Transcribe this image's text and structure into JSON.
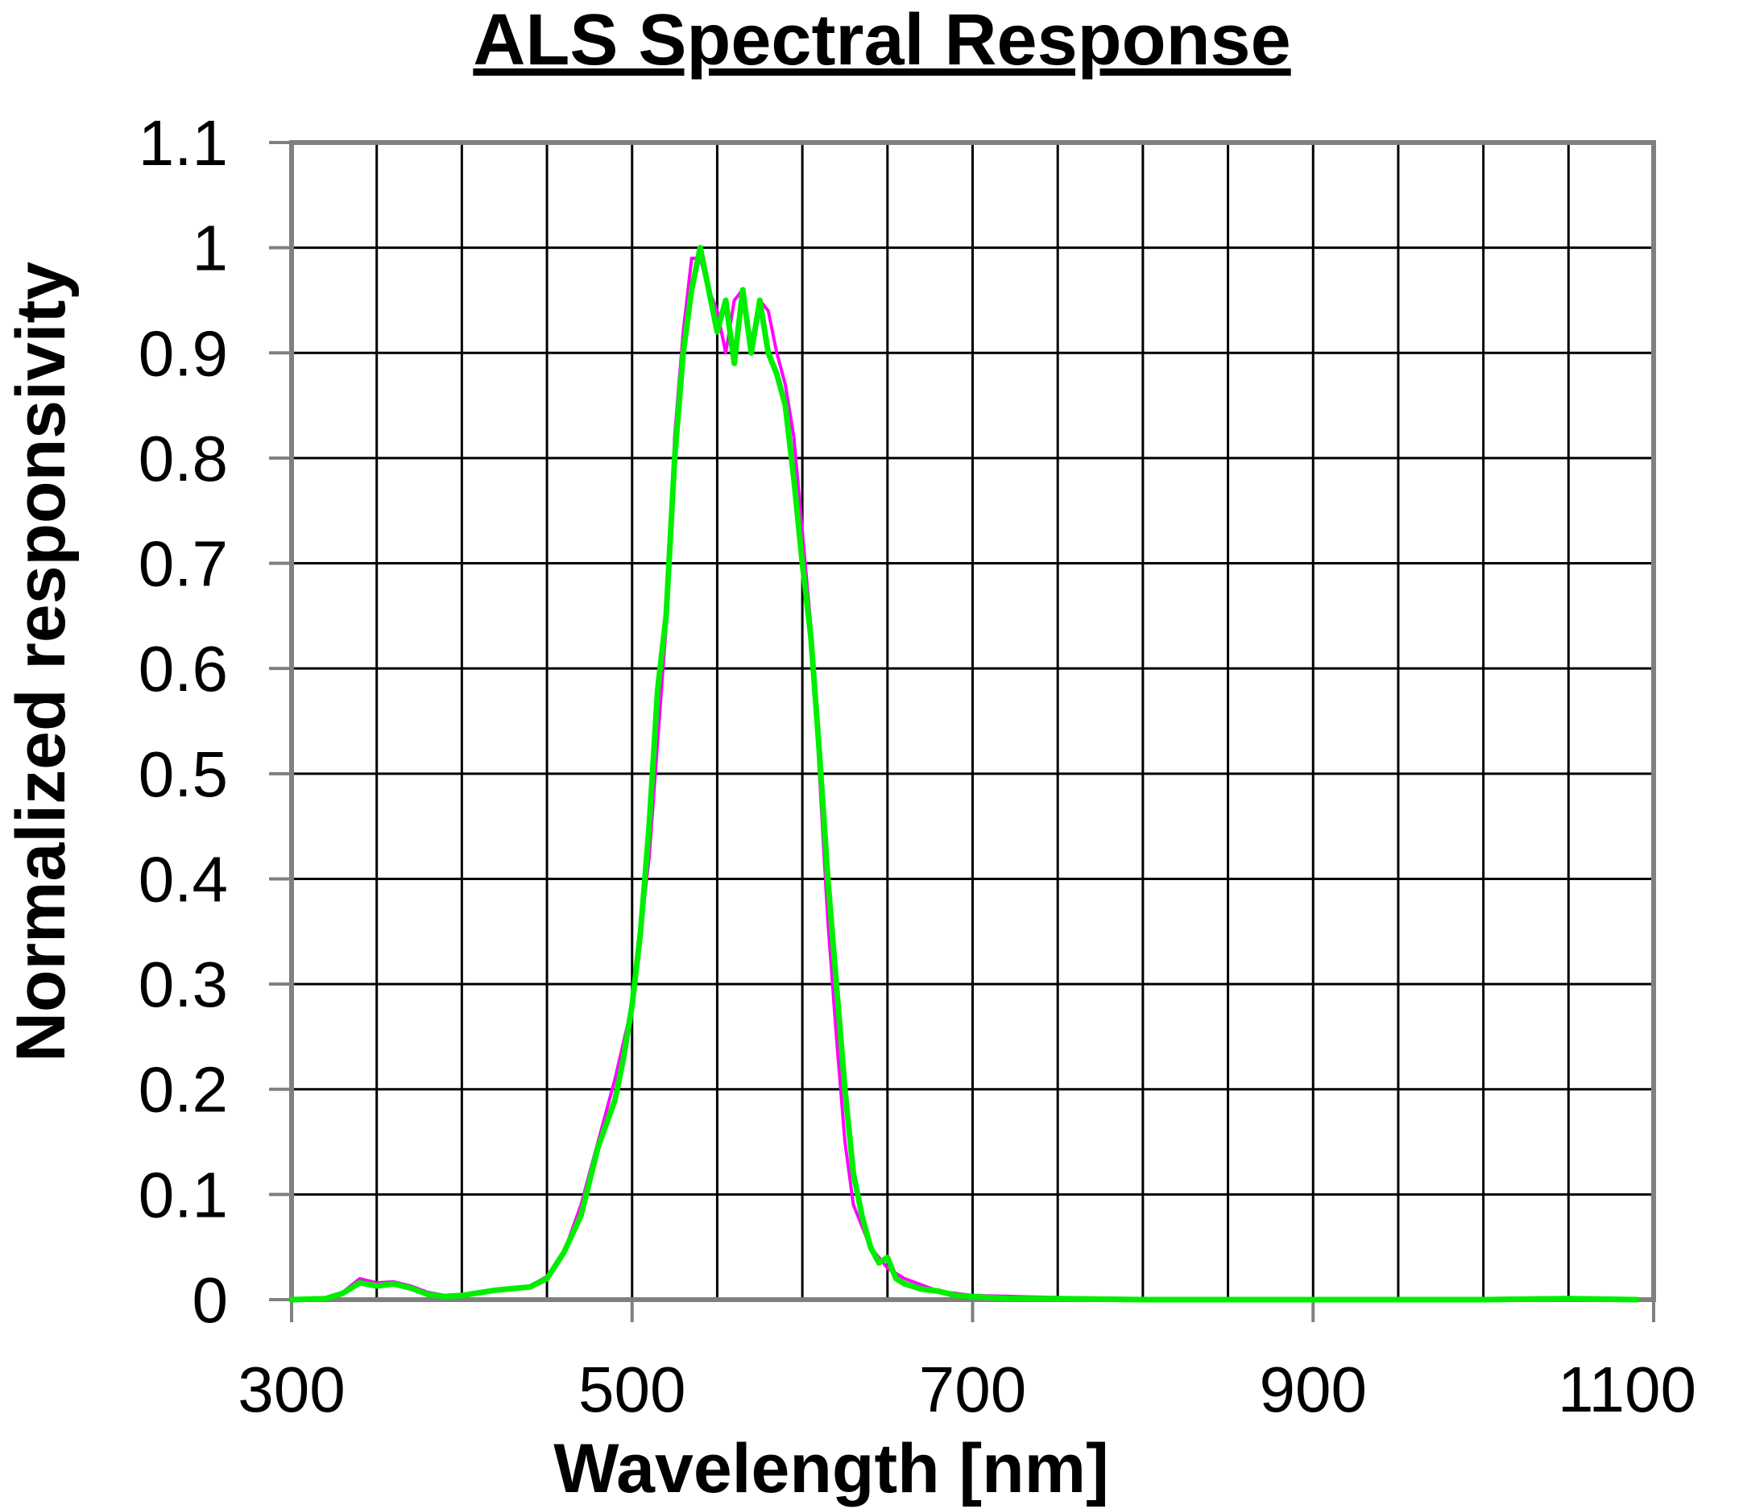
{
  "chart_data": {
    "type": "line",
    "title": "ALS Spectral Response",
    "xlabel": "Wavelength [nm]",
    "ylabel": "Normalized responsivity",
    "xlim": [
      300,
      1100
    ],
    "ylim": [
      0,
      1.1
    ],
    "x_ticks": [
      "300",
      "500",
      "700",
      "900",
      "1100"
    ],
    "y_ticks": [
      "0",
      "0.1",
      "0.2",
      "0.3",
      "0.4",
      "0.5",
      "0.6",
      "0.7",
      "0.8",
      "0.9",
      "1",
      "1.1"
    ],
    "grid": true,
    "legend": "none",
    "series": [
      {
        "color": "#ff00ff",
        "x": [
          300,
          320,
          330,
          340,
          350,
          360,
          370,
          380,
          390,
          400,
          420,
          440,
          450,
          460,
          470,
          480,
          490,
          500,
          510,
          520,
          525,
          530,
          535,
          540,
          545,
          550,
          555,
          560,
          565,
          570,
          575,
          580,
          585,
          590,
          595,
          600,
          605,
          610,
          615,
          620,
          625,
          630,
          640,
          650,
          660,
          680,
          700,
          750,
          800,
          900,
          1000,
          1050,
          1090
        ],
        "y": [
          0,
          0.001,
          0.007,
          0.02,
          0.016,
          0.017,
          0.013,
          0.007,
          0.004,
          0.005,
          0.009,
          0.013,
          0.022,
          0.045,
          0.09,
          0.15,
          0.21,
          0.28,
          0.42,
          0.64,
          0.82,
          0.92,
          0.99,
          0.99,
          0.96,
          0.94,
          0.9,
          0.95,
          0.96,
          0.91,
          0.95,
          0.94,
          0.9,
          0.87,
          0.82,
          0.73,
          0.64,
          0.5,
          0.36,
          0.25,
          0.15,
          0.09,
          0.05,
          0.03,
          0.02,
          0.008,
          0.004,
          0.002,
          0.001,
          0.001,
          0.001,
          0.002,
          0.001
        ]
      },
      {
        "color": "#00ee00",
        "x": [
          300,
          320,
          330,
          340,
          350,
          360,
          370,
          380,
          390,
          400,
          420,
          440,
          450,
          460,
          470,
          480,
          490,
          495,
          500,
          505,
          510,
          515,
          520,
          525,
          530,
          535,
          540,
          545,
          550,
          555,
          560,
          565,
          570,
          575,
          580,
          585,
          590,
          595,
          600,
          605,
          610,
          615,
          620,
          625,
          630,
          635,
          640,
          645,
          650,
          655,
          660,
          670,
          680,
          690,
          700,
          720,
          750,
          800,
          900,
          1000,
          1050,
          1090
        ],
        "y": [
          0,
          0.001,
          0.006,
          0.016,
          0.013,
          0.015,
          0.011,
          0.005,
          0.003,
          0.004,
          0.009,
          0.012,
          0.02,
          0.045,
          0.08,
          0.145,
          0.19,
          0.23,
          0.28,
          0.35,
          0.45,
          0.58,
          0.65,
          0.8,
          0.9,
          0.96,
          1.0,
          0.96,
          0.92,
          0.95,
          0.89,
          0.96,
          0.9,
          0.95,
          0.9,
          0.88,
          0.85,
          0.78,
          0.7,
          0.63,
          0.52,
          0.4,
          0.3,
          0.2,
          0.12,
          0.08,
          0.05,
          0.035,
          0.04,
          0.02,
          0.015,
          0.01,
          0.008,
          0.004,
          0.003,
          0.001,
          0.001,
          0.0,
          0.0,
          0.0,
          0.001,
          0.0
        ]
      }
    ]
  }
}
